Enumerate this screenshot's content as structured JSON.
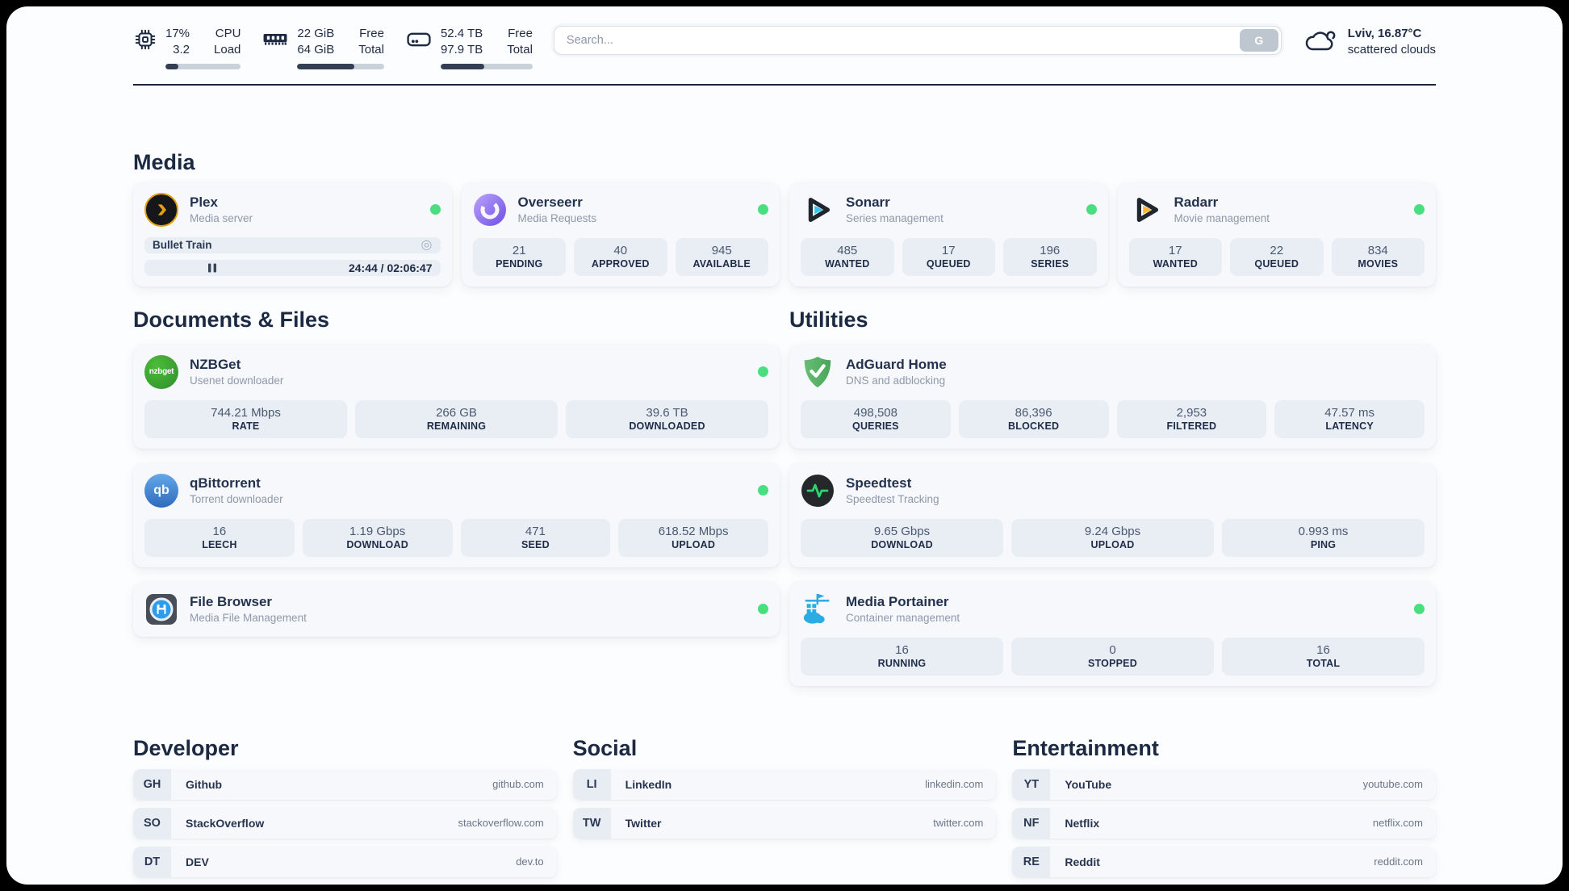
{
  "colors": {
    "status_green": "#4ade80",
    "plex_amber": "#e5a00d",
    "sonarr_cyan": "#35c5f1",
    "radarr_yellow": "#ffb733",
    "adguard_green": "#5eb96a",
    "speedtest_green": "#2fd56f",
    "portainer_blue": "#2aabe2",
    "filebrowser_blue": "#2d9cea",
    "text_dark": "#1f2b44"
  },
  "header": {
    "cpu": {
      "usage": "17%",
      "load": "3.2",
      "top_label": "CPU",
      "bottom_label": "Load",
      "bar": 17
    },
    "memory": {
      "free": "22 GiB",
      "total": "64 GiB",
      "top_label": "Free",
      "bottom_label": "Total",
      "bar": 66
    },
    "storage": {
      "free": "52.4 TB",
      "total": "97.9 TB",
      "top_label": "Free",
      "bottom_label": "Total",
      "bar": 47
    },
    "search": {
      "placeholder": "Search...",
      "button_label": "G"
    },
    "weather": {
      "location": "Lviv, 16.87°C",
      "condition": "scattered clouds"
    }
  },
  "media": {
    "title": "Media",
    "plex": {
      "name": "Plex",
      "subtitle": "Media server",
      "now_playing": "Bullet Train",
      "cast_icon": "◎",
      "time": "24:44 / 02:06:47",
      "progress": 20
    },
    "overseerr": {
      "name": "Overseerr",
      "subtitle": "Media Requests",
      "stats": [
        {
          "value": "21",
          "label": "PENDING"
        },
        {
          "value": "40",
          "label": "APPROVED"
        },
        {
          "value": "945",
          "label": "AVAILABLE"
        }
      ]
    },
    "sonarr": {
      "name": "Sonarr",
      "subtitle": "Series management",
      "stats": [
        {
          "value": "485",
          "label": "WANTED"
        },
        {
          "value": "17",
          "label": "QUEUED"
        },
        {
          "value": "196",
          "label": "SERIES"
        }
      ]
    },
    "radarr": {
      "name": "Radarr",
      "subtitle": "Movie management",
      "stats": [
        {
          "value": "17",
          "label": "WANTED"
        },
        {
          "value": "22",
          "label": "QUEUED"
        },
        {
          "value": "834",
          "label": "MOVIES"
        }
      ]
    }
  },
  "documents": {
    "title": "Documents & Files",
    "nzbget": {
      "name": "NZBGet",
      "subtitle": "Usenet downloader",
      "icon_text": "nzbget",
      "stats": [
        {
          "value": "744.21 Mbps",
          "label": "RATE"
        },
        {
          "value": "266 GB",
          "label": "REMAINING"
        },
        {
          "value": "39.6 TB",
          "label": "DOWNLOADED"
        }
      ]
    },
    "qbittorrent": {
      "name": "qBittorrent",
      "subtitle": "Torrent downloader",
      "icon_text": "qb",
      "stats": [
        {
          "value": "16",
          "label": "LEECH"
        },
        {
          "value": "1.19 Gbps",
          "label": "DOWNLOAD"
        },
        {
          "value": "471",
          "label": "SEED"
        },
        {
          "value": "618.52 Mbps",
          "label": "UPLOAD"
        }
      ]
    },
    "filebrowser": {
      "name": "File Browser",
      "subtitle": "Media File Management"
    }
  },
  "utilities": {
    "title": "Utilities",
    "adguard": {
      "name": "AdGuard Home",
      "subtitle": "DNS and adblocking",
      "stats": [
        {
          "value": "498,508",
          "label": "QUERIES"
        },
        {
          "value": "86,396",
          "label": "BLOCKED"
        },
        {
          "value": "2,953",
          "label": "FILTERED"
        },
        {
          "value": "47.57 ms",
          "label": "LATENCY"
        }
      ]
    },
    "speedtest": {
      "name": "Speedtest",
      "subtitle": "Speedtest Tracking",
      "stats": [
        {
          "value": "9.65 Gbps",
          "label": "DOWNLOAD"
        },
        {
          "value": "9.24 Gbps",
          "label": "UPLOAD"
        },
        {
          "value": "0.993 ms",
          "label": "PING"
        }
      ]
    },
    "portainer": {
      "name": "Media Portainer",
      "subtitle": "Container management",
      "stats": [
        {
          "value": "16",
          "label": "RUNNING"
        },
        {
          "value": "0",
          "label": "STOPPED"
        },
        {
          "value": "16",
          "label": "TOTAL"
        }
      ]
    }
  },
  "bookmarks": {
    "developer": {
      "title": "Developer",
      "links": [
        {
          "abbr": "GH",
          "name": "Github",
          "url": "github.com"
        },
        {
          "abbr": "SO",
          "name": "StackOverflow",
          "url": "stackoverflow.com"
        },
        {
          "abbr": "DT",
          "name": "DEV",
          "url": "dev.to"
        }
      ]
    },
    "social": {
      "title": "Social",
      "links": [
        {
          "abbr": "LI",
          "name": "LinkedIn",
          "url": "linkedin.com"
        },
        {
          "abbr": "TW",
          "name": "Twitter",
          "url": "twitter.com"
        }
      ]
    },
    "entertainment": {
      "title": "Entertainment",
      "links": [
        {
          "abbr": "YT",
          "name": "YouTube",
          "url": "youtube.com"
        },
        {
          "abbr": "NF",
          "name": "Netflix",
          "url": "netflix.com"
        },
        {
          "abbr": "RE",
          "name": "Reddit",
          "url": "reddit.com"
        }
      ]
    }
  }
}
